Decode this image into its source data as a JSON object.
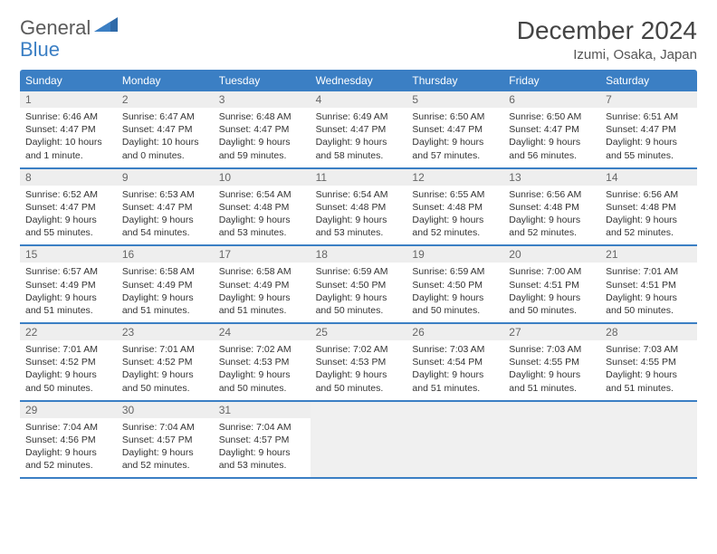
{
  "brand": {
    "word1": "General",
    "word2": "Blue"
  },
  "title": "December 2024",
  "location": "Izumi, Osaka, Japan",
  "colors": {
    "header_bg": "#3b7fc4",
    "header_text": "#ffffff",
    "page_bg": "#ffffff",
    "daynum_bg": "#eeeeee",
    "text": "#333333",
    "empty_bg": "#f0f0f0",
    "row_border": "#3b7fc4"
  },
  "days_of_week": [
    "Sunday",
    "Monday",
    "Tuesday",
    "Wednesday",
    "Thursday",
    "Friday",
    "Saturday"
  ],
  "weeks": [
    [
      {
        "n": "1",
        "sr": "Sunrise: 6:46 AM",
        "ss": "Sunset: 4:47 PM",
        "d1": "Daylight: 10 hours",
        "d2": "and 1 minute."
      },
      {
        "n": "2",
        "sr": "Sunrise: 6:47 AM",
        "ss": "Sunset: 4:47 PM",
        "d1": "Daylight: 10 hours",
        "d2": "and 0 minutes."
      },
      {
        "n": "3",
        "sr": "Sunrise: 6:48 AM",
        "ss": "Sunset: 4:47 PM",
        "d1": "Daylight: 9 hours",
        "d2": "and 59 minutes."
      },
      {
        "n": "4",
        "sr": "Sunrise: 6:49 AM",
        "ss": "Sunset: 4:47 PM",
        "d1": "Daylight: 9 hours",
        "d2": "and 58 minutes."
      },
      {
        "n": "5",
        "sr": "Sunrise: 6:50 AM",
        "ss": "Sunset: 4:47 PM",
        "d1": "Daylight: 9 hours",
        "d2": "and 57 minutes."
      },
      {
        "n": "6",
        "sr": "Sunrise: 6:50 AM",
        "ss": "Sunset: 4:47 PM",
        "d1": "Daylight: 9 hours",
        "d2": "and 56 minutes."
      },
      {
        "n": "7",
        "sr": "Sunrise: 6:51 AM",
        "ss": "Sunset: 4:47 PM",
        "d1": "Daylight: 9 hours",
        "d2": "and 55 minutes."
      }
    ],
    [
      {
        "n": "8",
        "sr": "Sunrise: 6:52 AM",
        "ss": "Sunset: 4:47 PM",
        "d1": "Daylight: 9 hours",
        "d2": "and 55 minutes."
      },
      {
        "n": "9",
        "sr": "Sunrise: 6:53 AM",
        "ss": "Sunset: 4:47 PM",
        "d1": "Daylight: 9 hours",
        "d2": "and 54 minutes."
      },
      {
        "n": "10",
        "sr": "Sunrise: 6:54 AM",
        "ss": "Sunset: 4:48 PM",
        "d1": "Daylight: 9 hours",
        "d2": "and 53 minutes."
      },
      {
        "n": "11",
        "sr": "Sunrise: 6:54 AM",
        "ss": "Sunset: 4:48 PM",
        "d1": "Daylight: 9 hours",
        "d2": "and 53 minutes."
      },
      {
        "n": "12",
        "sr": "Sunrise: 6:55 AM",
        "ss": "Sunset: 4:48 PM",
        "d1": "Daylight: 9 hours",
        "d2": "and 52 minutes."
      },
      {
        "n": "13",
        "sr": "Sunrise: 6:56 AM",
        "ss": "Sunset: 4:48 PM",
        "d1": "Daylight: 9 hours",
        "d2": "and 52 minutes."
      },
      {
        "n": "14",
        "sr": "Sunrise: 6:56 AM",
        "ss": "Sunset: 4:48 PM",
        "d1": "Daylight: 9 hours",
        "d2": "and 52 minutes."
      }
    ],
    [
      {
        "n": "15",
        "sr": "Sunrise: 6:57 AM",
        "ss": "Sunset: 4:49 PM",
        "d1": "Daylight: 9 hours",
        "d2": "and 51 minutes."
      },
      {
        "n": "16",
        "sr": "Sunrise: 6:58 AM",
        "ss": "Sunset: 4:49 PM",
        "d1": "Daylight: 9 hours",
        "d2": "and 51 minutes."
      },
      {
        "n": "17",
        "sr": "Sunrise: 6:58 AM",
        "ss": "Sunset: 4:49 PM",
        "d1": "Daylight: 9 hours",
        "d2": "and 51 minutes."
      },
      {
        "n": "18",
        "sr": "Sunrise: 6:59 AM",
        "ss": "Sunset: 4:50 PM",
        "d1": "Daylight: 9 hours",
        "d2": "and 50 minutes."
      },
      {
        "n": "19",
        "sr": "Sunrise: 6:59 AM",
        "ss": "Sunset: 4:50 PM",
        "d1": "Daylight: 9 hours",
        "d2": "and 50 minutes."
      },
      {
        "n": "20",
        "sr": "Sunrise: 7:00 AM",
        "ss": "Sunset: 4:51 PM",
        "d1": "Daylight: 9 hours",
        "d2": "and 50 minutes."
      },
      {
        "n": "21",
        "sr": "Sunrise: 7:01 AM",
        "ss": "Sunset: 4:51 PM",
        "d1": "Daylight: 9 hours",
        "d2": "and 50 minutes."
      }
    ],
    [
      {
        "n": "22",
        "sr": "Sunrise: 7:01 AM",
        "ss": "Sunset: 4:52 PM",
        "d1": "Daylight: 9 hours",
        "d2": "and 50 minutes."
      },
      {
        "n": "23",
        "sr": "Sunrise: 7:01 AM",
        "ss": "Sunset: 4:52 PM",
        "d1": "Daylight: 9 hours",
        "d2": "and 50 minutes."
      },
      {
        "n": "24",
        "sr": "Sunrise: 7:02 AM",
        "ss": "Sunset: 4:53 PM",
        "d1": "Daylight: 9 hours",
        "d2": "and 50 minutes."
      },
      {
        "n": "25",
        "sr": "Sunrise: 7:02 AM",
        "ss": "Sunset: 4:53 PM",
        "d1": "Daylight: 9 hours",
        "d2": "and 50 minutes."
      },
      {
        "n": "26",
        "sr": "Sunrise: 7:03 AM",
        "ss": "Sunset: 4:54 PM",
        "d1": "Daylight: 9 hours",
        "d2": "and 51 minutes."
      },
      {
        "n": "27",
        "sr": "Sunrise: 7:03 AM",
        "ss": "Sunset: 4:55 PM",
        "d1": "Daylight: 9 hours",
        "d2": "and 51 minutes."
      },
      {
        "n": "28",
        "sr": "Sunrise: 7:03 AM",
        "ss": "Sunset: 4:55 PM",
        "d1": "Daylight: 9 hours",
        "d2": "and 51 minutes."
      }
    ],
    [
      {
        "n": "29",
        "sr": "Sunrise: 7:04 AM",
        "ss": "Sunset: 4:56 PM",
        "d1": "Daylight: 9 hours",
        "d2": "and 52 minutes."
      },
      {
        "n": "30",
        "sr": "Sunrise: 7:04 AM",
        "ss": "Sunset: 4:57 PM",
        "d1": "Daylight: 9 hours",
        "d2": "and 52 minutes."
      },
      {
        "n": "31",
        "sr": "Sunrise: 7:04 AM",
        "ss": "Sunset: 4:57 PM",
        "d1": "Daylight: 9 hours",
        "d2": "and 53 minutes."
      },
      null,
      null,
      null,
      null
    ]
  ]
}
